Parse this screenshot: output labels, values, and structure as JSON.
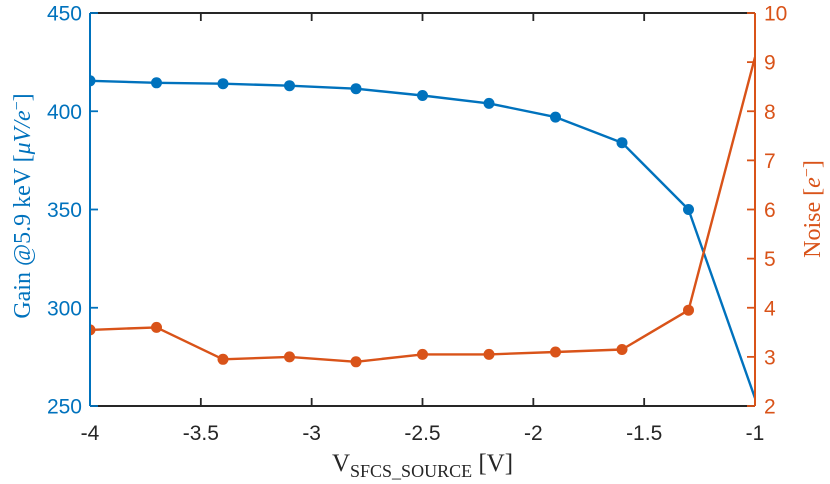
{
  "figure": {
    "background": "#ffffff",
    "frame_color": "#262626"
  },
  "chart_data": {
    "type": "line",
    "title": "",
    "x": [
      -4.0,
      -3.7,
      -3.4,
      -3.1,
      -2.8,
      -2.5,
      -2.2,
      -1.9,
      -1.6,
      -1.3,
      -1.0
    ],
    "series": [
      {
        "name": "gain",
        "axis": "left",
        "color": "#0072BD",
        "marker": "filled-circle",
        "values": [
          415.5,
          414.5,
          414,
          413,
          411.5,
          408,
          404,
          397,
          384,
          350,
          254
        ]
      },
      {
        "name": "noise",
        "axis": "right",
        "color": "#D95319",
        "marker": "filled-circle",
        "values": [
          3.55,
          3.6,
          2.95,
          3.0,
          2.9,
          3.05,
          3.05,
          3.1,
          3.15,
          3.95,
          9.1
        ]
      }
    ],
    "x_axis": {
      "label_main": "V",
      "label_sub": "SFCS_SOURCE",
      "label_unit": " [V]",
      "label_display": "V_SFCS_SOURCE [V]",
      "min": -4,
      "max": -1,
      "ticks": [
        -4,
        -3.5,
        -3,
        -2.5,
        -2,
        -1.5,
        -1
      ],
      "tick_labels": [
        "-4",
        "-3.5",
        "-3",
        "-2.5",
        "-2",
        "-1.5",
        "-1"
      ],
      "color": "#262626"
    },
    "left_axis": {
      "label_display": "Gain @5.9 keV [μV/e⁻]",
      "label_prefix": "Gain @5.9 keV [",
      "label_italic": "μV/e",
      "label_sup": "−",
      "label_suffix": "]",
      "min": 250,
      "max": 450,
      "ticks": [
        250,
        300,
        350,
        400,
        450
      ],
      "tick_labels": [
        "250",
        "300",
        "350",
        "400",
        "450"
      ],
      "color": "#0072BD"
    },
    "right_axis": {
      "label_display": "Noise [e⁻]",
      "label_prefix": "Noise [",
      "label_italic": "e",
      "label_sup": "−",
      "label_suffix": "]",
      "min": 2,
      "max": 10,
      "ticks": [
        2,
        3,
        4,
        5,
        6,
        7,
        8,
        9,
        10
      ],
      "tick_labels": [
        "2",
        "3",
        "4",
        "5",
        "6",
        "7",
        "8",
        "9",
        "10"
      ],
      "color": "#D95319"
    },
    "grid": false,
    "legend": null,
    "box": true
  }
}
